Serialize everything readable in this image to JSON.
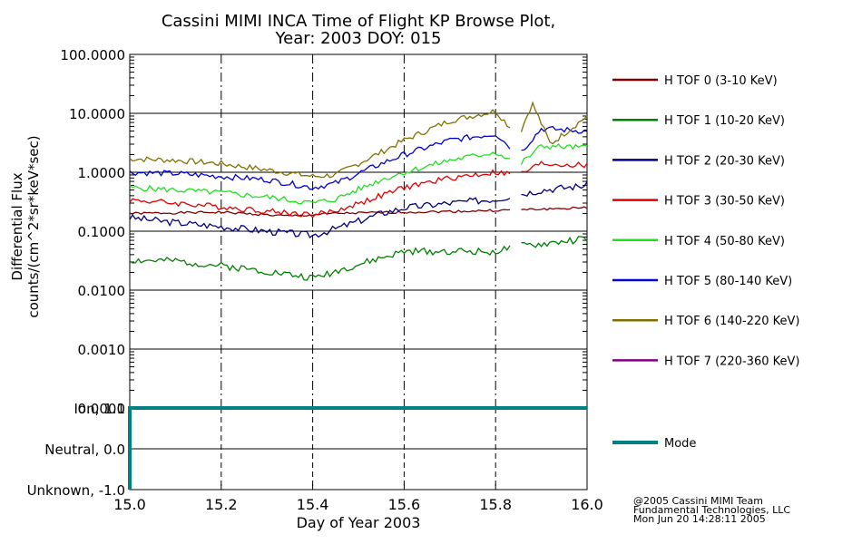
{
  "title_line1": "Cassini MIMI INCA Time of Flight KP Browse Plot,",
  "title_line2": "Year: 2003 DOY: 015",
  "credits": [
    "@2005 Cassini MIMI Team",
    "Fundamental Technologies, LLC",
    "Mon Jun 20 14:28:11 2005"
  ],
  "chart_data": [
    {
      "type": "line",
      "title": "Cassini MIMI INCA Time of Flight KP Browse Plot, Year: 2003 DOY: 015",
      "ylabel_line1": "Differential Flux",
      "ylabel_line2": "counts/(cm^2*sr*keV*sec)",
      "xlabel": "",
      "xlim": [
        15.0,
        16.0
      ],
      "ylim": [
        0.0001,
        100.0
      ],
      "yscale": "log",
      "yticks": [
        "100.0000",
        "10.0000",
        "1.0000",
        "0.1000",
        "0.0100",
        "0.0010",
        "0.0001"
      ],
      "ytick_values": [
        100,
        10,
        1,
        0.1,
        0.01,
        0.001,
        0.0001
      ],
      "xgrid_dashed": [
        15.2,
        15.4,
        15.6,
        15.8
      ],
      "legend_position": "right",
      "gap": [
        15.835,
        15.855
      ],
      "series": [
        {
          "name": "H TOF 0 (3-10 KeV)",
          "color": "#800000",
          "noise": 0.02,
          "seed": 1,
          "points": [
            [
              15.0,
              0.2
            ],
            [
              15.2,
              0.21
            ],
            [
              15.35,
              0.18
            ],
            [
              15.45,
              0.2
            ],
            [
              15.6,
              0.21
            ],
            [
              15.75,
              0.22
            ],
            [
              15.85,
              0.23
            ],
            [
              16.0,
              0.25
            ]
          ]
        },
        {
          "name": "H TOF 1 (10-20 KeV)",
          "color": "#008000",
          "noise": 0.06,
          "seed": 2,
          "points": [
            [
              15.0,
              0.032
            ],
            [
              15.1,
              0.031
            ],
            [
              15.2,
              0.026
            ],
            [
              15.3,
              0.021
            ],
            [
              15.4,
              0.016
            ],
            [
              15.45,
              0.021
            ],
            [
              15.5,
              0.027
            ],
            [
              15.6,
              0.045
            ],
            [
              15.7,
              0.046
            ],
            [
              15.8,
              0.045
            ],
            [
              15.85,
              0.055
            ],
            [
              15.9,
              0.06
            ],
            [
              16.0,
              0.075
            ]
          ]
        },
        {
          "name": "H TOF 2 (20-30 KeV)",
          "color": "#000080",
          "noise": 0.06,
          "seed": 3,
          "points": [
            [
              15.0,
              0.17
            ],
            [
              15.1,
              0.14
            ],
            [
              15.2,
              0.12
            ],
            [
              15.3,
              0.1
            ],
            [
              15.4,
              0.085
            ],
            [
              15.45,
              0.11
            ],
            [
              15.55,
              0.2
            ],
            [
              15.6,
              0.25
            ],
            [
              15.7,
              0.3
            ],
            [
              15.8,
              0.35
            ],
            [
              15.85,
              0.42
            ],
            [
              15.9,
              0.5
            ],
            [
              16.0,
              0.6
            ]
          ]
        },
        {
          "name": "H TOF 3 (30-50 KeV)",
          "color": "#e00000",
          "noise": 0.05,
          "seed": 4,
          "points": [
            [
              15.0,
              0.34
            ],
            [
              15.1,
              0.3
            ],
            [
              15.2,
              0.26
            ],
            [
              15.3,
              0.22
            ],
            [
              15.4,
              0.19
            ],
            [
              15.45,
              0.22
            ],
            [
              15.55,
              0.4
            ],
            [
              15.6,
              0.55
            ],
            [
              15.7,
              0.8
            ],
            [
              15.8,
              1.0
            ],
            [
              15.85,
              0.9
            ],
            [
              15.9,
              1.4
            ],
            [
              16.0,
              1.3
            ]
          ]
        },
        {
          "name": "H TOF 4 (50-80 KeV)",
          "color": "#20e020",
          "noise": 0.05,
          "seed": 5,
          "points": [
            [
              15.0,
              0.55
            ],
            [
              15.1,
              0.5
            ],
            [
              15.2,
              0.45
            ],
            [
              15.3,
              0.38
            ],
            [
              15.4,
              0.3
            ],
            [
              15.45,
              0.35
            ],
            [
              15.55,
              0.75
            ],
            [
              15.6,
              1.0
            ],
            [
              15.7,
              1.6
            ],
            [
              15.8,
              2.2
            ],
            [
              15.85,
              1.3
            ],
            [
              15.9,
              2.8
            ],
            [
              16.0,
              2.6
            ]
          ]
        },
        {
          "name": "H TOF 5 (80-140 KeV)",
          "color": "#0000d0",
          "noise": 0.05,
          "seed": 6,
          "points": [
            [
              15.0,
              1.0
            ],
            [
              15.1,
              0.95
            ],
            [
              15.2,
              0.85
            ],
            [
              15.3,
              0.75
            ],
            [
              15.4,
              0.55
            ],
            [
              15.45,
              0.65
            ],
            [
              15.55,
              1.4
            ],
            [
              15.6,
              2.0
            ],
            [
              15.7,
              3.5
            ],
            [
              15.8,
              4.5
            ],
            [
              15.85,
              2.0
            ],
            [
              15.9,
              5.5
            ],
            [
              16.0,
              5.0
            ]
          ]
        },
        {
          "name": "H TOF 6 (140-220 KeV)",
          "color": "#807000",
          "noise": 0.05,
          "seed": 7,
          "points": [
            [
              15.0,
              1.7
            ],
            [
              15.1,
              1.6
            ],
            [
              15.2,
              1.4
            ],
            [
              15.3,
              1.1
            ],
            [
              15.4,
              0.85
            ],
            [
              15.45,
              0.9
            ],
            [
              15.55,
              2.2
            ],
            [
              15.6,
              3.5
            ],
            [
              15.7,
              7.5
            ],
            [
              15.8,
              11.0
            ],
            [
              15.85,
              4.0
            ],
            [
              15.88,
              15.0
            ],
            [
              15.92,
              3.0
            ],
            [
              16.0,
              9.0
            ]
          ]
        },
        {
          "name": "H TOF 7 (220-360 KeV)",
          "color": "#800080",
          "noise": 0.0,
          "seed": 8,
          "points": []
        }
      ]
    },
    {
      "type": "line",
      "title": "",
      "xlabel": "Day of Year 2003",
      "xlim": [
        15.0,
        16.0
      ],
      "ylim": [
        -1.0,
        1.0
      ],
      "xticks": [
        "15.0",
        "15.2",
        "15.4",
        "15.6",
        "15.8",
        "16.0"
      ],
      "xtick_values": [
        15.0,
        15.2,
        15.4,
        15.6,
        15.8,
        16.0
      ],
      "yticks": [
        "Ion, 1.0",
        "Neutral, 0.0",
        "Unknown, -1.0"
      ],
      "ytick_values": [
        1.0,
        0.0,
        -1.0
      ],
      "series": [
        {
          "name": "Mode",
          "color": "#008080",
          "points": [
            [
              15.0,
              -1.0
            ],
            [
              15.0,
              1.0
            ],
            [
              16.0,
              1.0
            ]
          ]
        }
      ]
    }
  ]
}
